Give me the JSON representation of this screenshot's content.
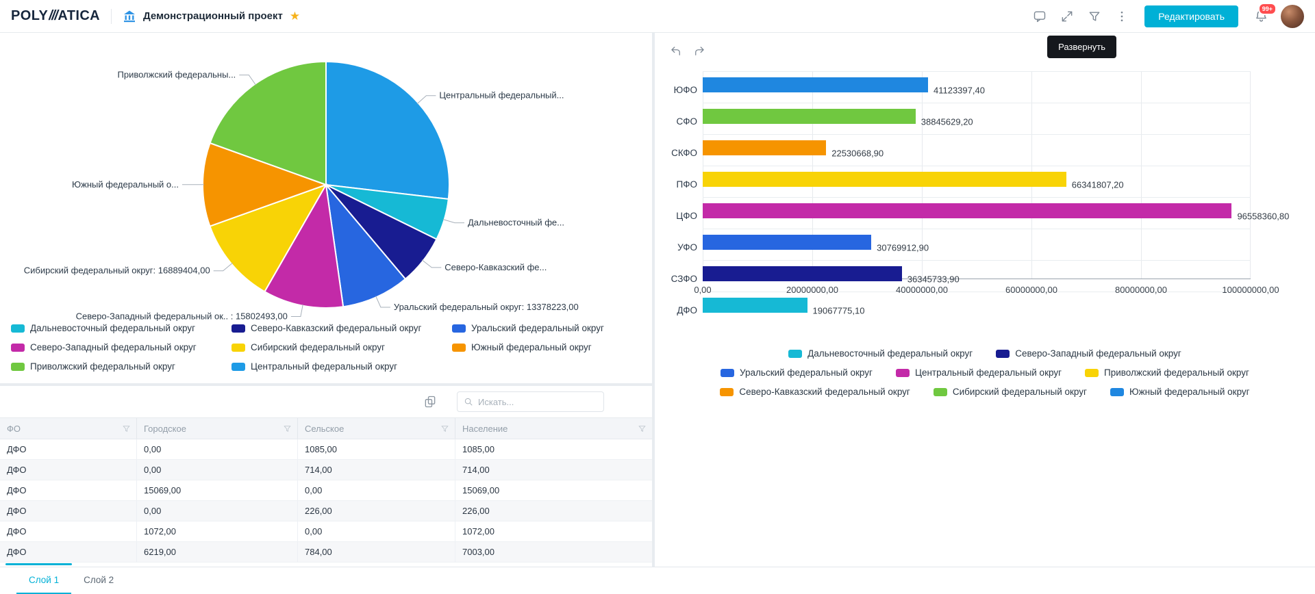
{
  "app": {
    "logo_poly": "POLY",
    "logo_slashes": "///",
    "logo_atica": "ATICA",
    "project_title": "Демонстрационный проект",
    "edit_button": "Редактировать",
    "notifications_badge": "99+",
    "tooltip": "Развернуть",
    "accent_color": "#00b0d6"
  },
  "layers": {
    "tabs": [
      {
        "label": "Слой 1",
        "active": true
      },
      {
        "label": "Слой 2",
        "active": false
      }
    ]
  },
  "table": {
    "search_placeholder": "Искать...",
    "columns": [
      "ФО",
      "Городское",
      "Сельское",
      "Население"
    ],
    "rows": [
      [
        "ДФО",
        "0,00",
        "1085,00",
        "1085,00"
      ],
      [
        "ДФО",
        "0,00",
        "714,00",
        "714,00"
      ],
      [
        "ДФО",
        "15069,00",
        "0,00",
        "15069,00"
      ],
      [
        "ДФО",
        "0,00",
        "226,00",
        "226,00"
      ],
      [
        "ДФО",
        "1072,00",
        "0,00",
        "1072,00"
      ],
      [
        "ДФО",
        "6219,00",
        "784,00",
        "7003,00"
      ]
    ]
  },
  "chart_data": [
    {
      "type": "pie",
      "title": "",
      "slices": [
        {
          "name": "Центральный федеральный округ",
          "label": "Центральный федеральный...",
          "value": 40334532,
          "color": "#1e9be6"
        },
        {
          "name": "Дальневосточный федеральный округ",
          "label": "Дальневосточный фе...",
          "value": 8169203,
          "color": "#16b9d5"
        },
        {
          "name": "Северо-Кавказский федеральный округ",
          "label": "Северо-Кавказский фе...",
          "value": 9866748,
          "color": "#181c91"
        },
        {
          "name": "Уральский федеральный округ",
          "label": "Уральский федеральный округ: 13378223,00",
          "value": 13378223,
          "color": "#2766e0"
        },
        {
          "name": "Северо-Западный федеральный округ",
          "label": "Северо-Западный федеральный ок.. : 15802493,00",
          "value": 15802493,
          "color": "#c32aa8"
        },
        {
          "name": "Сибирский федеральный округ",
          "label": "Сибирский федеральный округ: 16889404,00",
          "value": 16889404,
          "color": "#f8d306"
        },
        {
          "name": "Южный федеральный округ",
          "label": "Южный федеральный о...",
          "value": 16466084,
          "color": "#f69400"
        },
        {
          "name": "Приволжский федеральный округ",
          "label": "Приволжский федеральны...",
          "value": 29287683,
          "color": "#70c840"
        }
      ],
      "legend_rows": [
        [
          {
            "label": "Дальневосточный федеральный округ",
            "color": "#16b9d5"
          },
          {
            "label": "Северо-Кавказский федеральный округ",
            "color": "#181c91"
          },
          {
            "label": "Уральский федеральный округ",
            "color": "#2766e0"
          }
        ],
        [
          {
            "label": "Северо-Западный федеральный округ",
            "color": "#c32aa8"
          },
          {
            "label": "Сибирский федеральный округ",
            "color": "#f8d306"
          },
          {
            "label": "Южный федеральный округ",
            "color": "#f69400"
          }
        ],
        [
          {
            "label": "Приволжский федеральный округ",
            "color": "#70c840"
          },
          {
            "label": "Центральный федеральный округ",
            "color": "#1e9be6"
          }
        ]
      ]
    },
    {
      "type": "bar",
      "orientation": "horizontal",
      "categories": [
        "ЮФО",
        "СФО",
        "СКФО",
        "ПФО",
        "ЦФО",
        "УФО",
        "СЗФО",
        "ДФО"
      ],
      "values": [
        41123397.4,
        38845629.2,
        22530668.9,
        66341807.2,
        96558360.8,
        30769912.9,
        36345733.9,
        19067775.1
      ],
      "value_labels": [
        "41123397,40",
        "38845629,20",
        "22530668,90",
        "66341807,20",
        "96558360,80",
        "30769912,90",
        "36345733,90",
        "19067775,10"
      ],
      "colors": [
        "#1f87e0",
        "#70c840",
        "#f69400",
        "#f8d306",
        "#c32aa8",
        "#2766e0",
        "#181c91",
        "#16b9d5"
      ],
      "xlim": [
        0,
        100000000
      ],
      "x_ticks": [
        "0,00",
        "20000000,00",
        "40000000,00",
        "60000000,00",
        "80000000,00",
        "100000000,00"
      ],
      "grid": true,
      "legend_rows": [
        [
          {
            "label": "Дальневосточный федеральный округ",
            "color": "#16b9d5"
          },
          {
            "label": "Северо-Западный федеральный округ",
            "color": "#181c91"
          }
        ],
        [
          {
            "label": "Уральский федеральный округ",
            "color": "#2766e0"
          },
          {
            "label": "Центральный федеральный округ",
            "color": "#c32aa8"
          },
          {
            "label": "Приволжский федеральный округ",
            "color": "#f8d306"
          }
        ],
        [
          {
            "label": "Северо-Кавказский федеральный округ",
            "color": "#f69400"
          },
          {
            "label": "Сибирский федеральный округ",
            "color": "#70c840"
          },
          {
            "label": "Южный федеральный округ",
            "color": "#1f87e0"
          }
        ]
      ]
    }
  ]
}
